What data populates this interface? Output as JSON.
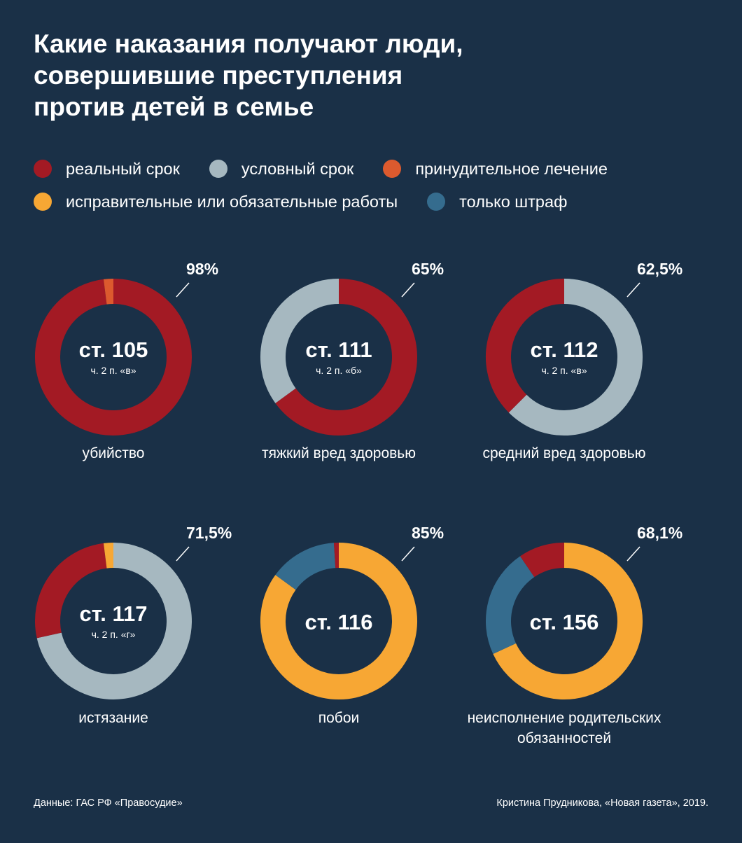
{
  "title_lines": [
    "Какие наказания получают люди,",
    "совершившие преступления",
    "против детей в семье"
  ],
  "legend": [
    {
      "label": "реальный срок",
      "color": "#a31a24"
    },
    {
      "label": "условный срок",
      "color": "#a6b8c0"
    },
    {
      "label": "принудительное лечение",
      "color": "#dc5a2e"
    },
    {
      "label": "исправительные или обязательные работы",
      "color": "#f7a734"
    },
    {
      "label": "только штраф",
      "color": "#356c8e"
    }
  ],
  "chart_data": [
    {
      "type": "pie",
      "article": "ст. 105",
      "subtitle": "ч. 2 п. «в»",
      "label_lines": [
        "убийство"
      ],
      "callout": "98%",
      "slices": [
        {
          "category": "реальный срок",
          "value": 98,
          "color": "#a31a24"
        },
        {
          "category": "принудительное лечение",
          "value": 2,
          "color": "#dc5a2e"
        }
      ]
    },
    {
      "type": "pie",
      "article": "ст. 111",
      "subtitle": "ч. 2 п. «б»",
      "label_lines": [
        "тяжкий вред здоровью"
      ],
      "callout": "65%",
      "slices": [
        {
          "category": "реальный срок",
          "value": 65,
          "color": "#a31a24"
        },
        {
          "category": "условный срок",
          "value": 35,
          "color": "#a6b8c0"
        }
      ]
    },
    {
      "type": "pie",
      "article": "ст. 112",
      "subtitle": "ч. 2 п. «в»",
      "label_lines": [
        "средний вред здоровью"
      ],
      "callout": "62,5%",
      "slices": [
        {
          "category": "условный срок",
          "value": 62.5,
          "color": "#a6b8c0"
        },
        {
          "category": "реальный срок",
          "value": 37.5,
          "color": "#a31a24"
        }
      ]
    },
    {
      "type": "pie",
      "article": "ст. 117",
      "subtitle": "ч. 2 п. «г»",
      "label_lines": [
        "истязание"
      ],
      "callout": "71,5%",
      "slices": [
        {
          "category": "условный срок",
          "value": 71.5,
          "color": "#a6b8c0"
        },
        {
          "category": "реальный срок",
          "value": 26.5,
          "color": "#a31a24"
        },
        {
          "category": "исправительные или обязательные работы",
          "value": 2,
          "color": "#f7a734"
        }
      ]
    },
    {
      "type": "pie",
      "article": "ст. 116",
      "subtitle": "",
      "label_lines": [
        "побои"
      ],
      "callout": "85%",
      "slices": [
        {
          "category": "исправительные или обязательные работы",
          "value": 85,
          "color": "#f7a734"
        },
        {
          "category": "только штраф",
          "value": 14,
          "color": "#356c8e"
        },
        {
          "category": "реальный срок",
          "value": 1,
          "color": "#a31a24"
        }
      ]
    },
    {
      "type": "pie",
      "article": "ст. 156",
      "subtitle": "",
      "label_lines": [
        "неисполнение родительских",
        "обязанностей"
      ],
      "callout": "68,1%",
      "slices": [
        {
          "category": "исправительные или обязательные работы",
          "value": 68.1,
          "color": "#f7a734"
        },
        {
          "category": "только штраф",
          "value": 22.4,
          "color": "#356c8e"
        },
        {
          "category": "реальный срок",
          "value": 9.5,
          "color": "#a31a24"
        }
      ]
    }
  ],
  "footer": {
    "source": "Данные: ГАС РФ «Правосудие»",
    "credit": "Кристина Прудникова, «Новая газета», 2019."
  }
}
